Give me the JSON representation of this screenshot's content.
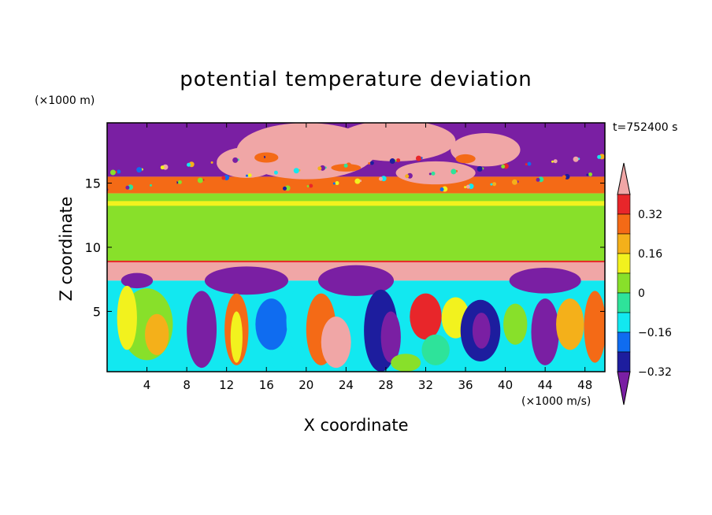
{
  "chart_data": {
    "type": "heatmap",
    "title": "potential temperature deviation",
    "xlabel": "X coordinate",
    "ylabel": "Z coordinate",
    "x_unit": "(×1000 m/s)",
    "z_unit": "(×1000 m)",
    "time_label": "t=752400 s",
    "xlim": [
      0,
      50
    ],
    "ylim": [
      0.3,
      19.7
    ],
    "x_ticks": [
      "4",
      "8",
      "12",
      "16",
      "20",
      "24",
      "28",
      "32",
      "36",
      "40",
      "44",
      "48"
    ],
    "y_ticks": [
      "5",
      "10",
      "15"
    ],
    "colorbar": {
      "levels": [
        -0.4,
        -0.32,
        -0.24,
        -0.16,
        -0.08,
        0,
        0.08,
        0.16,
        0.24,
        0.32,
        0.4
      ],
      "labels": [
        "0.32",
        "0.16",
        "0",
        "−0.16",
        "−0.32"
      ],
      "colors": [
        "#7a1fa3",
        "#1d1d9e",
        "#0f6cf0",
        "#12e8f0",
        "#2ee39a",
        "#88e02a",
        "#f2f21e",
        "#f4b01a",
        "#f46a16",
        "#e8262a",
        "#f0a6a6"
      ]
    }
  },
  "colors": {
    "band_top": "#7a1fa3",
    "band_upper": "#f0a6a6",
    "band_middle": "#88e02a",
    "band_lower_pink": "#f0a6a6",
    "band_lower": "#12e8f0"
  }
}
